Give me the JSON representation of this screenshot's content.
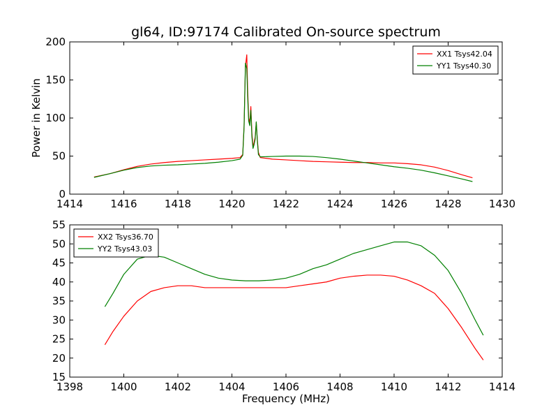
{
  "figure": {
    "title": "gl64, ID:97174 Calibrated On-source spectrum",
    "background": "#ffffff"
  },
  "chart_data": [
    {
      "type": "line",
      "title": "gl64, ID:97174 Calibrated On-source spectrum",
      "xlabel": "",
      "ylabel": "Power in Kelvin",
      "xlim": [
        1414,
        1430
      ],
      "ylim": [
        0,
        200
      ],
      "xticks": [
        1414,
        1416,
        1418,
        1420,
        1422,
        1424,
        1426,
        1428,
        1430
      ],
      "yticks": [
        0,
        50,
        100,
        150,
        200
      ],
      "grid": false,
      "legend": "top-right",
      "series": [
        {
          "name": "XX1 Tsys42.04",
          "color": "#ff0000",
          "points": [
            [
              1414.9,
              22.5
            ],
            [
              1415.5,
              27
            ],
            [
              1416,
              32
            ],
            [
              1416.5,
              36.5
            ],
            [
              1417,
              39.5
            ],
            [
              1417.5,
              41.5
            ],
            [
              1418,
              43
            ],
            [
              1418.5,
              44
            ],
            [
              1419,
              45
            ],
            [
              1419.5,
              46
            ],
            [
              1420,
              47
            ],
            [
              1420.3,
              48
            ],
            [
              1420.4,
              52
            ],
            [
              1420.45,
              90
            ],
            [
              1420.5,
              168
            ],
            [
              1420.55,
              183
            ],
            [
              1420.58,
              140
            ],
            [
              1420.62,
              100
            ],
            [
              1420.66,
              94
            ],
            [
              1420.7,
              115
            ],
            [
              1420.74,
              80
            ],
            [
              1420.78,
              62
            ],
            [
              1420.82,
              68
            ],
            [
              1420.86,
              75
            ],
            [
              1420.9,
              94
            ],
            [
              1420.94,
              72
            ],
            [
              1420.98,
              55
            ],
            [
              1421.05,
              48
            ],
            [
              1421.5,
              46
            ],
            [
              1422,
              45
            ],
            [
              1422.5,
              44
            ],
            [
              1423,
              43
            ],
            [
              1423.5,
              42.5
            ],
            [
              1424,
              42
            ],
            [
              1424.5,
              41.5
            ],
            [
              1425,
              41.5
            ],
            [
              1425.5,
              41
            ],
            [
              1426,
              41
            ],
            [
              1426.5,
              40
            ],
            [
              1427,
              38.5
            ],
            [
              1427.5,
              35.5
            ],
            [
              1428,
              31
            ],
            [
              1428.5,
              25.5
            ],
            [
              1428.9,
              21.5
            ]
          ]
        },
        {
          "name": "YY1 Tsys40.30",
          "color": "#008000",
          "points": [
            [
              1414.9,
              22
            ],
            [
              1415.5,
              27
            ],
            [
              1416,
              31.5
            ],
            [
              1416.5,
              35
            ],
            [
              1417,
              37
            ],
            [
              1417.5,
              38
            ],
            [
              1418,
              38.5
            ],
            [
              1418.5,
              39.5
            ],
            [
              1419,
              40.5
            ],
            [
              1419.5,
              42
            ],
            [
              1420,
              44
            ],
            [
              1420.3,
              46
            ],
            [
              1420.4,
              51
            ],
            [
              1420.45,
              88
            ],
            [
              1420.5,
              172
            ],
            [
              1420.55,
              165
            ],
            [
              1420.58,
              130
            ],
            [
              1420.62,
              96
            ],
            [
              1420.66,
              90
            ],
            [
              1420.7,
              110
            ],
            [
              1420.74,
              75
            ],
            [
              1420.78,
              60
            ],
            [
              1420.82,
              65
            ],
            [
              1420.86,
              72
            ],
            [
              1420.9,
              95
            ],
            [
              1420.94,
              70
            ],
            [
              1420.98,
              52
            ],
            [
              1421.05,
              49
            ],
            [
              1421.5,
              49.5
            ],
            [
              1422,
              50
            ],
            [
              1422.5,
              50
            ],
            [
              1423,
              49.5
            ],
            [
              1423.5,
              48
            ],
            [
              1424,
              46
            ],
            [
              1424.5,
              43.5
            ],
            [
              1425,
              41
            ],
            [
              1425.5,
              38.5
            ],
            [
              1426,
              36
            ],
            [
              1426.5,
              34
            ],
            [
              1427,
              31.5
            ],
            [
              1427.5,
              28
            ],
            [
              1428,
              24
            ],
            [
              1428.5,
              20
            ],
            [
              1428.9,
              16.5
            ]
          ]
        }
      ]
    },
    {
      "type": "line",
      "title": "",
      "xlabel": "Frequency (MHz)",
      "ylabel": "",
      "xlim": [
        1398,
        1414
      ],
      "ylim": [
        15,
        55
      ],
      "xticks": [
        1398,
        1400,
        1402,
        1404,
        1406,
        1408,
        1410,
        1412,
        1414
      ],
      "yticks": [
        15,
        20,
        25,
        30,
        35,
        40,
        45,
        50,
        55
      ],
      "grid": false,
      "legend": "top-left",
      "series": [
        {
          "name": "XX2 Tsys36.70",
          "color": "#ff0000",
          "points": [
            [
              1399.3,
              23.5
            ],
            [
              1399.6,
              27
            ],
            [
              1400,
              31
            ],
            [
              1400.5,
              35
            ],
            [
              1401,
              37.5
            ],
            [
              1401.5,
              38.5
            ],
            [
              1402,
              39
            ],
            [
              1402.5,
              39
            ],
            [
              1403,
              38.5
            ],
            [
              1403.5,
              38.5
            ],
            [
              1404,
              38.5
            ],
            [
              1404.5,
              38.5
            ],
            [
              1405,
              38.5
            ],
            [
              1405.5,
              38.5
            ],
            [
              1406,
              38.5
            ],
            [
              1406.5,
              39
            ],
            [
              1407,
              39.5
            ],
            [
              1407.5,
              40
            ],
            [
              1408,
              41
            ],
            [
              1408.5,
              41.5
            ],
            [
              1409,
              41.8
            ],
            [
              1409.5,
              41.8
            ],
            [
              1410,
              41.5
            ],
            [
              1410.5,
              40.5
            ],
            [
              1411,
              39
            ],
            [
              1411.5,
              37
            ],
            [
              1412,
              33
            ],
            [
              1412.5,
              28
            ],
            [
              1413,
              22.5
            ],
            [
              1413.3,
              19.5
            ]
          ]
        },
        {
          "name": "YY2 Tsys43.03",
          "color": "#008000",
          "points": [
            [
              1399.3,
              33.5
            ],
            [
              1399.6,
              37
            ],
            [
              1400,
              42
            ],
            [
              1400.5,
              46
            ],
            [
              1401,
              47
            ],
            [
              1401.5,
              46.5
            ],
            [
              1402,
              45
            ],
            [
              1402.5,
              43.5
            ],
            [
              1403,
              42
            ],
            [
              1403.5,
              41
            ],
            [
              1404,
              40.5
            ],
            [
              1404.5,
              40.3
            ],
            [
              1405,
              40.3
            ],
            [
              1405.5,
              40.5
            ],
            [
              1406,
              41
            ],
            [
              1406.5,
              42
            ],
            [
              1407,
              43.5
            ],
            [
              1407.5,
              44.5
            ],
            [
              1408,
              46
            ],
            [
              1408.5,
              47.5
            ],
            [
              1409,
              48.5
            ],
            [
              1409.5,
              49.5
            ],
            [
              1410,
              50.5
            ],
            [
              1410.5,
              50.5
            ],
            [
              1411,
              49.5
            ],
            [
              1411.5,
              47
            ],
            [
              1412,
              43
            ],
            [
              1412.5,
              37
            ],
            [
              1413,
              30
            ],
            [
              1413.3,
              26
            ]
          ]
        }
      ]
    }
  ]
}
